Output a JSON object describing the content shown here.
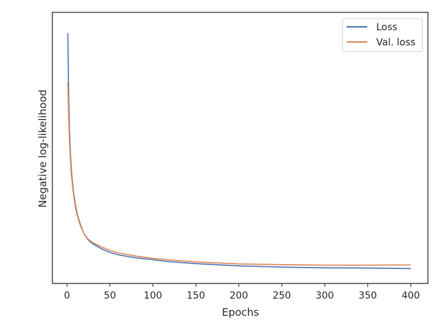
{
  "chart_data": {
    "type": "line",
    "title": "",
    "xlabel": "Epochs",
    "ylabel": "Negative log-likelihood",
    "xlim": [
      -17,
      420
    ],
    "ylim": [
      0,
      100
    ],
    "xticks": [
      0,
      50,
      100,
      150,
      200,
      250,
      300,
      350,
      400
    ],
    "grid": false,
    "legend_position": "top-right",
    "series": [
      {
        "name": "Loss",
        "color": "#4c72b0",
        "x": [
          1,
          2,
          3,
          4,
          5,
          6,
          8,
          10,
          12,
          15,
          20,
          25,
          30,
          40,
          50,
          60,
          80,
          100,
          120,
          150,
          200,
          250,
          300,
          350,
          400
        ],
        "y": [
          96.0,
          70.0,
          56.0,
          47.0,
          41.0,
          36.5,
          30.0,
          25.5,
          22.0,
          18.5,
          14.0,
          11.5,
          10.0,
          8.0,
          6.5,
          5.5,
          4.3,
          3.5,
          2.7,
          1.9,
          1.0,
          0.5,
          0.2,
          0.1,
          -0.1
        ]
      },
      {
        "name": "Val. loss",
        "color": "#dd8452",
        "x": [
          1,
          2,
          3,
          4,
          5,
          6,
          8,
          10,
          12,
          15,
          20,
          25,
          30,
          40,
          50,
          60,
          80,
          100,
          120,
          150,
          200,
          250,
          300,
          350,
          400
        ],
        "y": [
          76.0,
          62.0,
          52.0,
          44.5,
          39.0,
          35.0,
          29.0,
          24.5,
          21.5,
          18.0,
          14.0,
          11.8,
          10.5,
          8.8,
          7.3,
          6.3,
          5.0,
          4.1,
          3.4,
          2.6,
          1.8,
          1.5,
          1.3,
          1.3,
          1.4
        ]
      }
    ]
  }
}
